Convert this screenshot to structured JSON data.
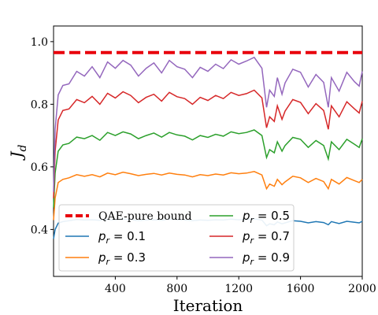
{
  "chart_data": {
    "type": "line",
    "xlabel": "Iteration",
    "ylabel": "J_d",
    "xlim": [
      0,
      2000
    ],
    "ylim": [
      0.25,
      1.05
    ],
    "xticks": [
      400,
      800,
      1200,
      1600,
      2000
    ],
    "xtick_labels": [
      "400",
      "800",
      "1200",
      "1600",
      "2000"
    ],
    "yticks": [
      0.4,
      0.6,
      0.8,
      1.0
    ],
    "ytick_labels": [
      "0.4",
      "0.6",
      "0.8",
      "1.0"
    ],
    "grid": false,
    "legend_location": "lower-left",
    "reference_line": {
      "name": "QAE-pure bound",
      "y": 0.965,
      "color": "#e8000b",
      "style": "dashed"
    },
    "series": [
      {
        "name": "p_r = 0.1",
        "color": "#1f77b4",
        "x": [
          0,
          10,
          30,
          60,
          100,
          150,
          200,
          250,
          300,
          350,
          400,
          450,
          500,
          550,
          600,
          650,
          700,
          750,
          800,
          850,
          900,
          950,
          1000,
          1050,
          1100,
          1150,
          1200,
          1250,
          1300,
          1350,
          1380,
          1400,
          1430,
          1450,
          1480,
          1500,
          1550,
          1600,
          1650,
          1700,
          1750,
          1780,
          1800,
          1850,
          1900,
          1950,
          1980,
          2000
        ],
        "y": [
          0.37,
          0.4,
          0.42,
          0.425,
          0.428,
          0.432,
          0.43,
          0.431,
          0.429,
          0.432,
          0.43,
          0.434,
          0.432,
          0.428,
          0.43,
          0.431,
          0.429,
          0.433,
          0.431,
          0.43,
          0.428,
          0.43,
          0.429,
          0.431,
          0.43,
          0.433,
          0.431,
          0.432,
          0.434,
          0.43,
          0.412,
          0.418,
          0.415,
          0.424,
          0.418,
          0.421,
          0.428,
          0.426,
          0.421,
          0.425,
          0.422,
          0.415,
          0.425,
          0.419,
          0.426,
          0.423,
          0.421,
          0.426
        ]
      },
      {
        "name": "p_r = 0.3",
        "color": "#ff7f0e",
        "x": [
          0,
          10,
          30,
          60,
          100,
          150,
          200,
          250,
          300,
          350,
          400,
          450,
          500,
          550,
          600,
          650,
          700,
          750,
          800,
          850,
          900,
          950,
          1000,
          1050,
          1100,
          1150,
          1200,
          1250,
          1300,
          1350,
          1380,
          1400,
          1430,
          1450,
          1480,
          1500,
          1550,
          1600,
          1650,
          1700,
          1750,
          1780,
          1800,
          1850,
          1900,
          1950,
          1980,
          2000
        ],
        "y": [
          0.43,
          0.5,
          0.55,
          0.56,
          0.565,
          0.575,
          0.57,
          0.575,
          0.568,
          0.58,
          0.575,
          0.583,
          0.578,
          0.572,
          0.576,
          0.579,
          0.574,
          0.58,
          0.576,
          0.574,
          0.568,
          0.575,
          0.572,
          0.577,
          0.574,
          0.581,
          0.578,
          0.58,
          0.585,
          0.574,
          0.53,
          0.545,
          0.538,
          0.56,
          0.543,
          0.552,
          0.57,
          0.565,
          0.55,
          0.563,
          0.553,
          0.53,
          0.56,
          0.545,
          0.566,
          0.556,
          0.55,
          0.56
        ]
      },
      {
        "name": "p_r = 0.5",
        "color": "#2ca02c",
        "x": [
          0,
          10,
          30,
          60,
          100,
          150,
          200,
          250,
          300,
          350,
          400,
          450,
          500,
          550,
          600,
          650,
          700,
          750,
          800,
          850,
          900,
          950,
          1000,
          1050,
          1100,
          1150,
          1200,
          1250,
          1300,
          1350,
          1380,
          1400,
          1430,
          1450,
          1480,
          1500,
          1550,
          1600,
          1650,
          1700,
          1750,
          1780,
          1800,
          1850,
          1900,
          1950,
          1980,
          2000
        ],
        "y": [
          0.47,
          0.58,
          0.65,
          0.67,
          0.675,
          0.695,
          0.69,
          0.7,
          0.685,
          0.71,
          0.7,
          0.712,
          0.705,
          0.69,
          0.7,
          0.708,
          0.695,
          0.71,
          0.702,
          0.698,
          0.686,
          0.7,
          0.694,
          0.704,
          0.698,
          0.712,
          0.706,
          0.71,
          0.718,
          0.7,
          0.63,
          0.655,
          0.645,
          0.68,
          0.65,
          0.668,
          0.694,
          0.688,
          0.662,
          0.684,
          0.668,
          0.625,
          0.68,
          0.655,
          0.688,
          0.672,
          0.662,
          0.69
        ]
      },
      {
        "name": "p_r = 0.7",
        "color": "#d62728",
        "x": [
          0,
          10,
          30,
          60,
          100,
          150,
          200,
          250,
          300,
          350,
          400,
          450,
          500,
          550,
          600,
          650,
          700,
          750,
          800,
          850,
          900,
          950,
          1000,
          1050,
          1100,
          1150,
          1200,
          1250,
          1300,
          1350,
          1380,
          1400,
          1430,
          1450,
          1480,
          1500,
          1550,
          1600,
          1650,
          1700,
          1750,
          1780,
          1800,
          1850,
          1900,
          1950,
          1980,
          2000
        ],
        "y": [
          0.5,
          0.65,
          0.75,
          0.78,
          0.785,
          0.815,
          0.805,
          0.825,
          0.8,
          0.835,
          0.82,
          0.84,
          0.828,
          0.805,
          0.822,
          0.832,
          0.81,
          0.838,
          0.824,
          0.818,
          0.8,
          0.822,
          0.812,
          0.828,
          0.818,
          0.838,
          0.828,
          0.834,
          0.845,
          0.82,
          0.725,
          0.76,
          0.745,
          0.795,
          0.752,
          0.778,
          0.815,
          0.806,
          0.77,
          0.802,
          0.78,
          0.72,
          0.795,
          0.76,
          0.808,
          0.785,
          0.772,
          0.81
        ]
      },
      {
        "name": "p_r = 0.9",
        "color": "#9467bd",
        "x": [
          0,
          10,
          30,
          60,
          100,
          150,
          200,
          250,
          300,
          350,
          400,
          450,
          500,
          550,
          600,
          650,
          700,
          750,
          800,
          850,
          900,
          950,
          1000,
          1050,
          1100,
          1150,
          1200,
          1250,
          1300,
          1350,
          1380,
          1400,
          1430,
          1450,
          1480,
          1500,
          1550,
          1600,
          1650,
          1700,
          1750,
          1780,
          1800,
          1850,
          1900,
          1950,
          1980,
          2000
        ],
        "y": [
          0.52,
          0.72,
          0.83,
          0.86,
          0.865,
          0.905,
          0.89,
          0.92,
          0.885,
          0.935,
          0.915,
          0.94,
          0.925,
          0.89,
          0.915,
          0.932,
          0.9,
          0.94,
          0.92,
          0.912,
          0.885,
          0.918,
          0.905,
          0.928,
          0.914,
          0.942,
          0.928,
          0.938,
          0.95,
          0.915,
          0.79,
          0.845,
          0.825,
          0.885,
          0.832,
          0.868,
          0.912,
          0.902,
          0.855,
          0.895,
          0.87,
          0.79,
          0.885,
          0.842,
          0.902,
          0.872,
          0.858,
          0.905
        ]
      }
    ]
  }
}
